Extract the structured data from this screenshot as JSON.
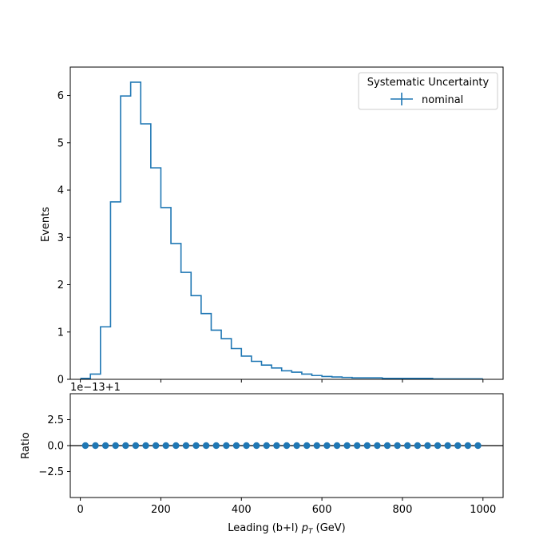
{
  "chart_data": [
    {
      "type": "histogram",
      "ylabel": "Events",
      "xlim": [
        -25,
        1050
      ],
      "ylim": [
        0,
        6.6
      ],
      "yticks": [
        0,
        1,
        2,
        3,
        4,
        5,
        6
      ],
      "ytick_labels": [
        "0",
        "1",
        "2",
        "3",
        "4",
        "5",
        "6"
      ],
      "xticks": [
        0,
        200,
        400,
        600,
        800,
        1000
      ],
      "xtick_labels_shown": false,
      "series_color": "#1f77b4",
      "bin_edges": [
        0,
        25,
        50,
        75,
        100,
        125,
        150,
        175,
        200,
        225,
        250,
        275,
        300,
        325,
        350,
        375,
        400,
        425,
        450,
        475,
        500,
        525,
        550,
        575,
        600,
        625,
        650,
        675,
        700,
        725,
        750,
        775,
        800,
        825,
        850,
        875,
        900,
        925,
        950,
        975,
        1000
      ],
      "values": [
        0.02,
        0.11,
        1.11,
        3.75,
        5.99,
        6.28,
        5.4,
        4.47,
        3.63,
        2.87,
        2.26,
        1.77,
        1.39,
        1.04,
        0.86,
        0.65,
        0.49,
        0.38,
        0.3,
        0.24,
        0.18,
        0.15,
        0.11,
        0.08,
        0.06,
        0.05,
        0.04,
        0.03,
        0.03,
        0.03,
        0.02,
        0.02,
        0.02,
        0.02,
        0.02,
        0.01,
        0.01,
        0.01,
        0.01,
        0.01
      ],
      "legend": {
        "title": "Systematic Uncertainty",
        "entries": [
          "nominal"
        ],
        "placement": "upper-right"
      }
    },
    {
      "type": "scatter",
      "ylabel": "Ratio",
      "xlabel": "Leading (b+l) p_T (GeV)",
      "xlabel_main": "Leading (b+l) ",
      "xlabel_italic": "p",
      "xlabel_sub": "T",
      "xlabel_unit": " (GeV)",
      "offset_text": "1e−13+1",
      "xlim": [
        -25,
        1050
      ],
      "ylim": [
        -5,
        5
      ],
      "yticks": [
        2.5,
        0.0,
        -2.5
      ],
      "ytick_labels": [
        "2.5",
        "0.0",
        "−2.5"
      ],
      "xticks": [
        0,
        200,
        400,
        600,
        800,
        1000
      ],
      "xtick_labels": [
        "0",
        "200",
        "400",
        "600",
        "800",
        "1000"
      ],
      "reference_line": 0,
      "marker_color": "#1f77b4",
      "x": [
        12.5,
        37.5,
        62.5,
        87.5,
        112.5,
        137.5,
        162.5,
        187.5,
        212.5,
        237.5,
        262.5,
        287.5,
        312.5,
        337.5,
        362.5,
        387.5,
        412.5,
        437.5,
        462.5,
        487.5,
        512.5,
        537.5,
        562.5,
        587.5,
        612.5,
        637.5,
        662.5,
        687.5,
        712.5,
        737.5,
        762.5,
        787.5,
        812.5,
        837.5,
        862.5,
        887.5,
        912.5,
        937.5,
        962.5,
        987.5
      ],
      "y": [
        0,
        0,
        0,
        0,
        0,
        0,
        0,
        0,
        0,
        0,
        0,
        0,
        0,
        0,
        0,
        0,
        0,
        0,
        0,
        0,
        0,
        0,
        0,
        0,
        0,
        0,
        0,
        0,
        0,
        0,
        0,
        0,
        0,
        0,
        0,
        0,
        0,
        0,
        0,
        0
      ]
    }
  ]
}
